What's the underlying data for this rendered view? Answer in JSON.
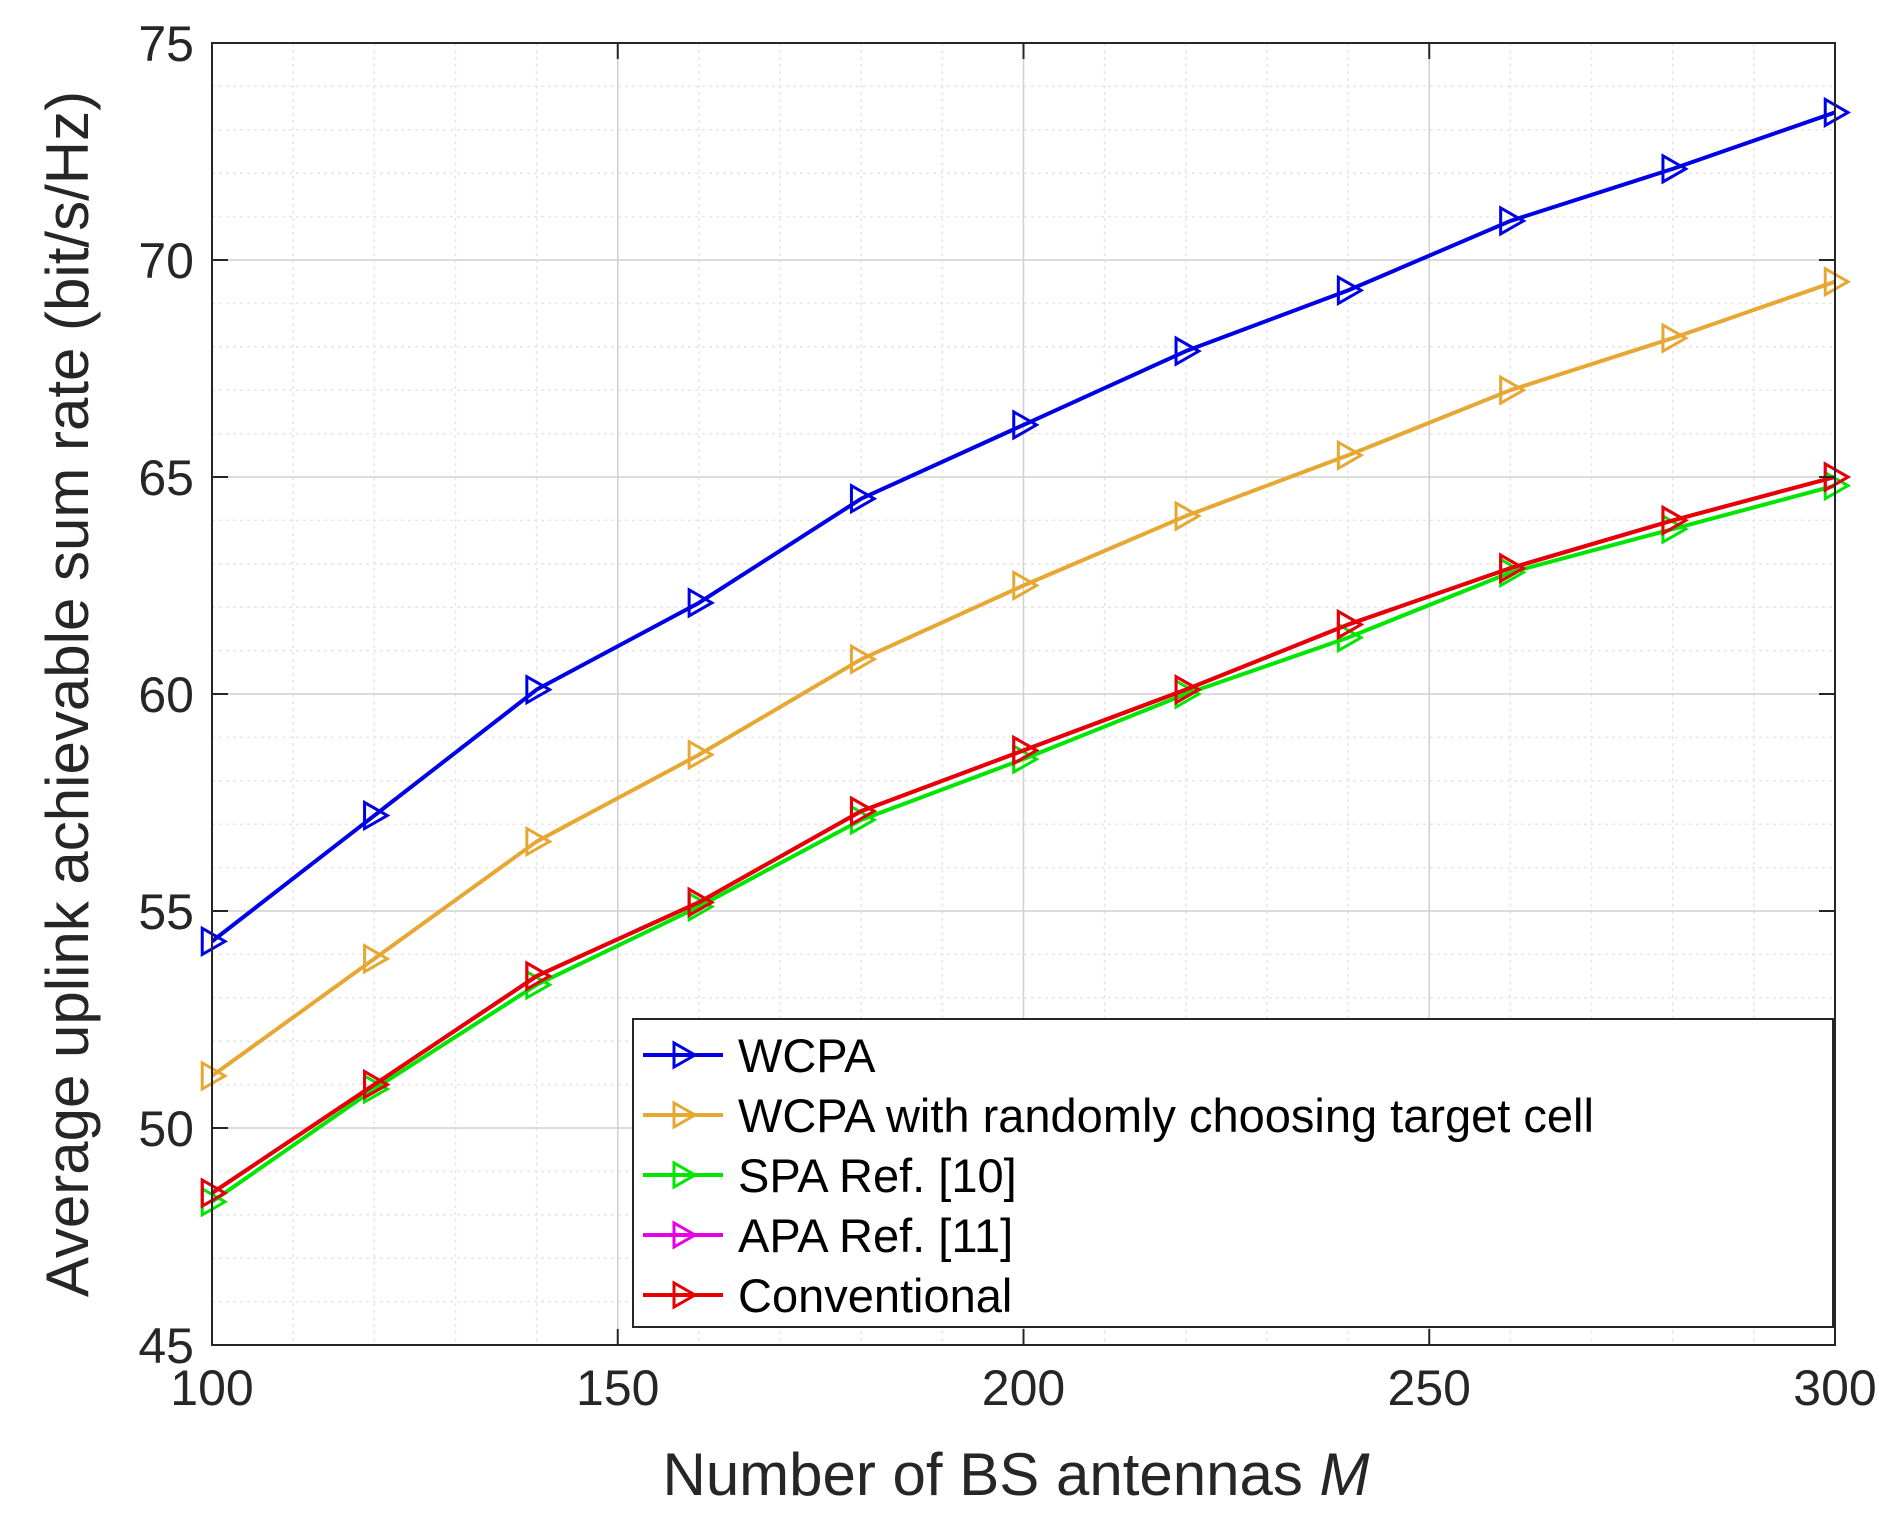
{
  "chart_data": {
    "type": "line",
    "title": "",
    "xlabel": "Number of BS antennas",
    "xlabel_var": "M",
    "ylabel": "Average uplink achievable sum rate (bit/s/Hz)",
    "xlim": [
      100,
      300
    ],
    "ylim": [
      45,
      75
    ],
    "xticks": [
      100,
      150,
      200,
      250,
      300
    ],
    "yticks": [
      45,
      50,
      55,
      60,
      65,
      70,
      75
    ],
    "grid": true,
    "minor_grid": true,
    "legend_position": "bottom-right",
    "marker": "triangle-right",
    "x": [
      100,
      120,
      140,
      160,
      180,
      200,
      220,
      240,
      260,
      280,
      300
    ],
    "series": [
      {
        "name": "WCPA",
        "color": "#0000e6",
        "values": [
          54.3,
          57.2,
          60.1,
          62.1,
          64.5,
          66.2,
          67.9,
          69.3,
          70.9,
          72.1,
          73.4
        ]
      },
      {
        "name": "WCPA with randomly choosing target cell",
        "color": "#e6a832",
        "values": [
          51.2,
          53.9,
          56.6,
          58.6,
          60.8,
          62.5,
          64.1,
          65.5,
          67.0,
          68.2,
          69.5
        ]
      },
      {
        "name": "SPA Ref. [10]",
        "color": "#00e600",
        "values": [
          48.3,
          50.9,
          53.3,
          55.1,
          57.1,
          58.5,
          60.0,
          61.3,
          62.8,
          63.8,
          64.8
        ]
      },
      {
        "name": "APA Ref. [11]",
        "color": "#e600e6",
        "values": [
          48.5,
          51.0,
          53.5,
          55.2,
          57.3,
          58.7,
          60.1,
          61.6,
          62.9,
          64.0,
          65.0
        ]
      },
      {
        "name": "Conventional",
        "color": "#e60000",
        "values": [
          48.5,
          51.0,
          53.5,
          55.2,
          57.3,
          58.7,
          60.1,
          61.6,
          62.9,
          64.0,
          65.0
        ]
      }
    ]
  }
}
